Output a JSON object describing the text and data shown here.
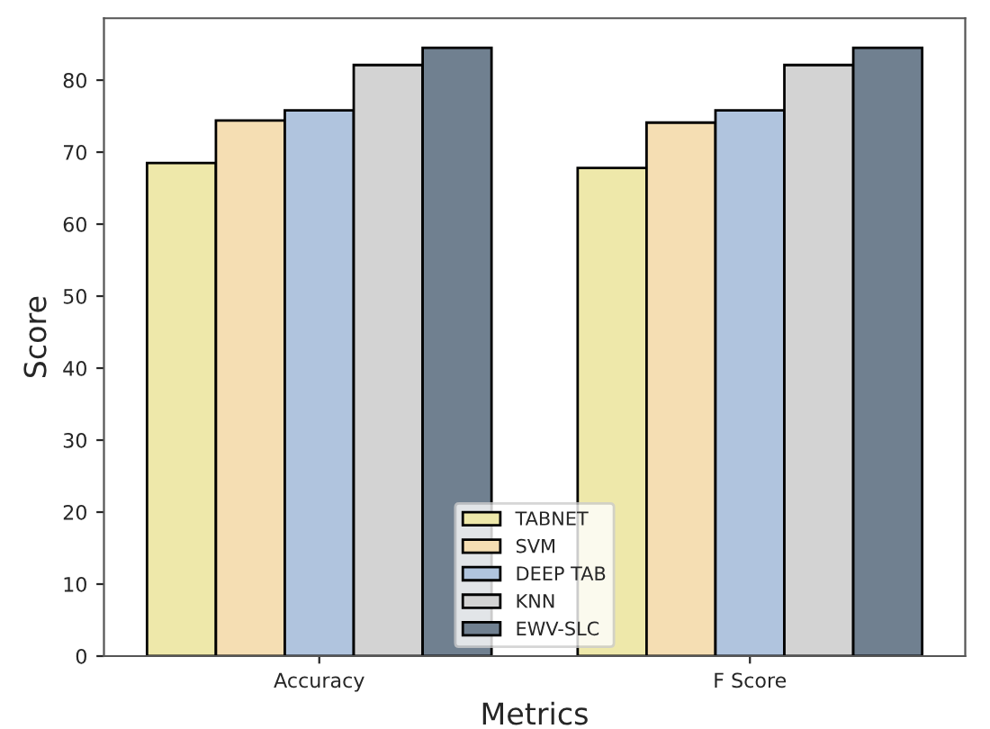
{
  "chart_data": {
    "type": "bar",
    "xlabel": "Metrics",
    "ylabel": "Score",
    "categories": [
      "Accuracy",
      "F Score"
    ],
    "series": [
      {
        "name": "TABNET",
        "color": "#eee8aa",
        "values": [
          68.5,
          67.8
        ]
      },
      {
        "name": "SVM",
        "color": "#f5deb3",
        "values": [
          74.4,
          74.1
        ]
      },
      {
        "name": "DEEP TAB",
        "color": "#b0c4de",
        "values": [
          75.8,
          75.8
        ]
      },
      {
        "name": "KNN",
        "color": "#d3d3d3",
        "values": [
          82.1,
          82.1
        ]
      },
      {
        "name": "EWV-SLC",
        "color": "#708090",
        "values": [
          84.5,
          84.5
        ]
      }
    ],
    "ylim": [
      0,
      88.6
    ],
    "yticks": [
      0,
      10,
      20,
      30,
      40,
      50,
      60,
      70,
      80
    ],
    "grid": false,
    "legend": "bottom"
  }
}
